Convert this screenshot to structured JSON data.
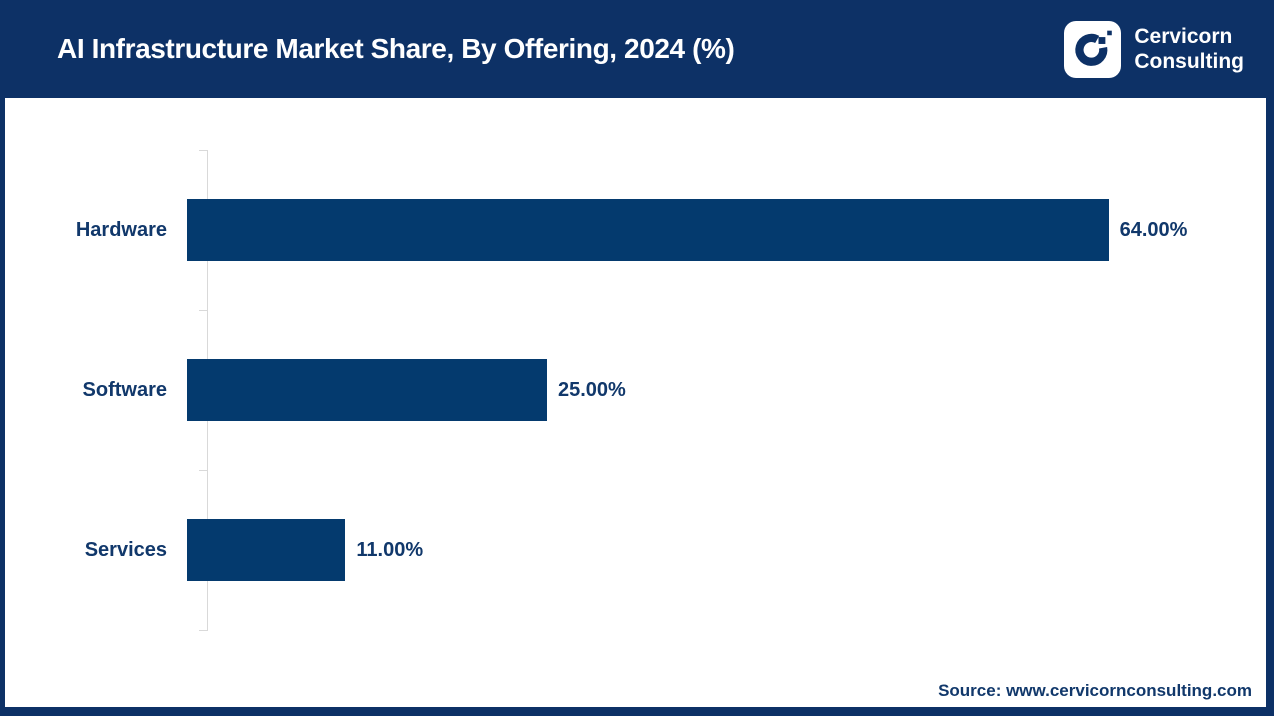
{
  "header": {
    "title": "AI Infrastructure Market Share, By Offering, 2024 (%)",
    "brand": {
      "logo_icon": "cervicorn-c-logo",
      "line1": "Cervicorn",
      "line2": "Consulting"
    }
  },
  "chart_data": {
    "type": "bar",
    "orientation": "horizontal",
    "title": "AI Infrastructure Market Share, By Offering, 2024 (%)",
    "categories": [
      "Hardware",
      "Software",
      "Services"
    ],
    "values": [
      64,
      25,
      11
    ],
    "value_labels": [
      "64.00%",
      "25.00%",
      "11.00%"
    ],
    "xlabel": "",
    "ylabel": "",
    "grid": false,
    "legend": "none",
    "bar_color": "#043a6e"
  },
  "footer": {
    "source": "Source: www.cervicornconsulting.com"
  },
  "colors": {
    "header_bg": "#0d3166",
    "bar": "#043a6e",
    "text_navy": "#11386b",
    "axis_gray": "#d9d9d9",
    "title_text": "#ffffff"
  }
}
